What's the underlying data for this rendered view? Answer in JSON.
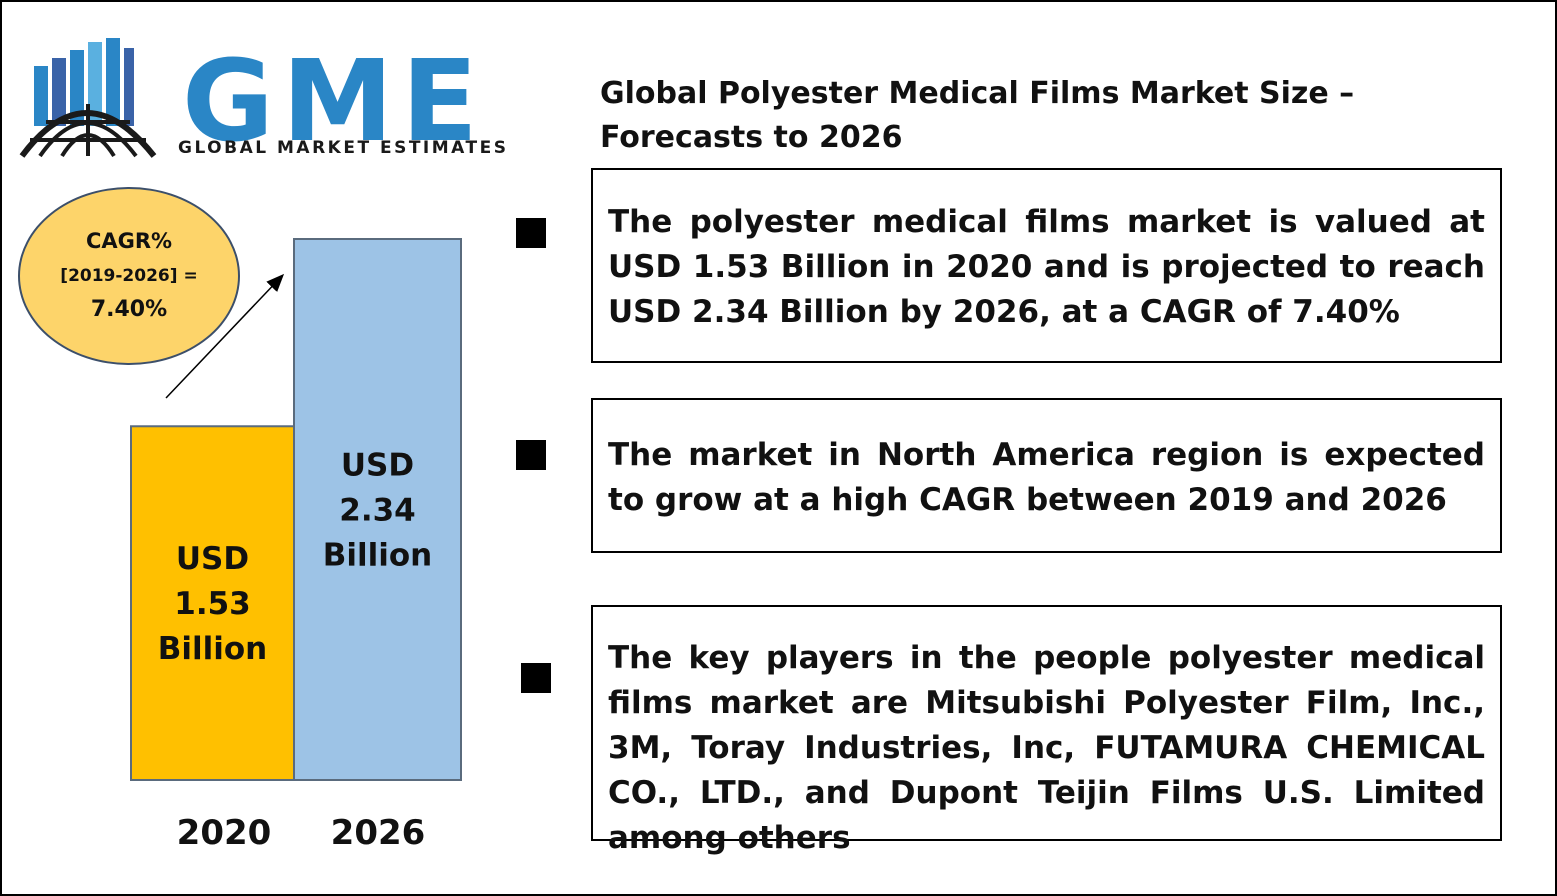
{
  "logo": {
    "letters": "GME",
    "tagline": "GLOBAL MARKET ESTIMATES"
  },
  "title": "Global Polyester Medical Films Market Size – Forecasts to 2026",
  "cagr_bubble": {
    "label": "CAGR%",
    "period": "[2019-2026] =",
    "value": "7.40%"
  },
  "colors": {
    "bar_2020": "#ffc000",
    "bar_2026": "#9dc3e6",
    "bubble": "#fdd46a",
    "logo_blue": "#2a86c6"
  },
  "chart_data": {
    "type": "bar",
    "categories": [
      "2020",
      "2026"
    ],
    "values": [
      1.53,
      2.34
    ],
    "data_labels": [
      [
        "USD",
        "1.53",
        "Billion"
      ],
      [
        "USD",
        "2.34",
        "Billion"
      ]
    ],
    "units": "USD Billion",
    "ylim": [
      0,
      2.34
    ],
    "title": "",
    "xlabel": "",
    "ylabel": "",
    "grid": false,
    "legend": "none"
  },
  "bullets": [
    "The polyester medical films market is valued at USD 1.53 Billion in 2020 and is projected to reach USD 2.34 Billion by 2026, at a CAGR of 7.40%",
    "The market in North America region is expected to grow at a high CAGR between 2019 and 2026",
    "The key players in the people polyester medical films market are Mitsubishi Polyester Film, Inc., 3M, Toray Industries, Inc, FUTAMURA CHEMICAL CO., LTD., and Dupont Teijin Films U.S. Limited among others"
  ]
}
